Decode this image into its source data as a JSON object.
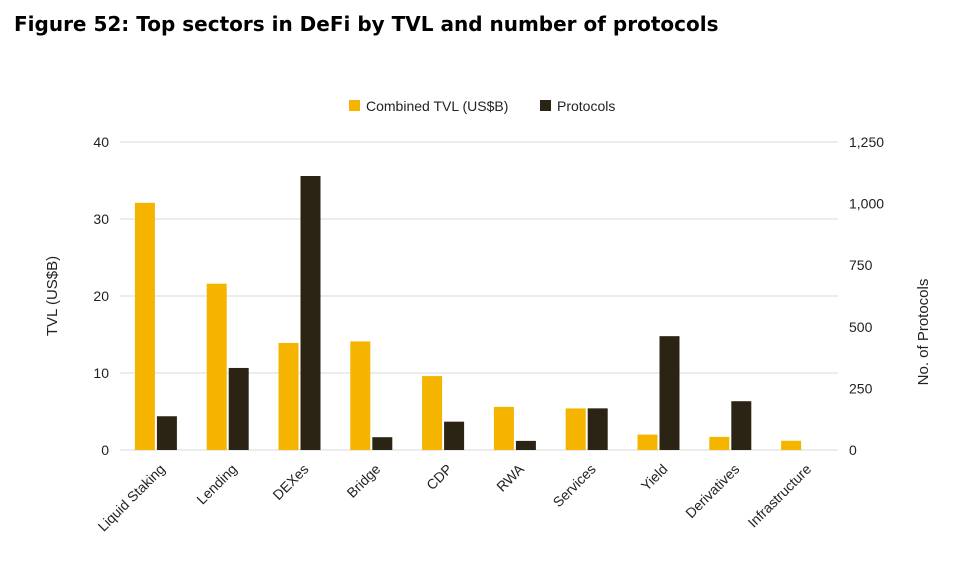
{
  "figure": {
    "title": "Figure 52: Top sectors in DeFi by TVL and number of protocols"
  },
  "colors": {
    "tvl": "#F5B400",
    "protocols": "#2B2414",
    "grid": "#DADADA"
  },
  "chart_data": {
    "type": "bar",
    "title": "Figure 52: Top sectors in DeFi by TVL and number of protocols",
    "categories": [
      "Liquid Staking",
      "Lending",
      "DEXes",
      "Bridge",
      "CDP",
      "RWA",
      "Services",
      "Yield",
      "Derivatives",
      "Infrastructure"
    ],
    "series": [
      {
        "name": "Combined TVL (US$B)",
        "axis": "left",
        "values": [
          32.1,
          21.6,
          13.9,
          14.1,
          9.6,
          5.6,
          5.4,
          2.0,
          1.7,
          1.2
        ]
      },
      {
        "name": "Protocols",
        "axis": "right",
        "values": [
          137,
          333,
          1112,
          52,
          115,
          37,
          169,
          462,
          198,
          0
        ]
      }
    ],
    "ylabel_left": "TVL (US$B)",
    "ylabel_right": "No. of Protocols",
    "ylim_left": [
      0,
      40
    ],
    "ylim_right": [
      0,
      1250
    ],
    "yticks_left": [
      "0",
      "10",
      "20",
      "30",
      "40"
    ],
    "yticks_right": [
      "0",
      "250",
      "500",
      "750",
      "1,000",
      "1,250"
    ],
    "legend_position": "top-center",
    "grid": true
  }
}
